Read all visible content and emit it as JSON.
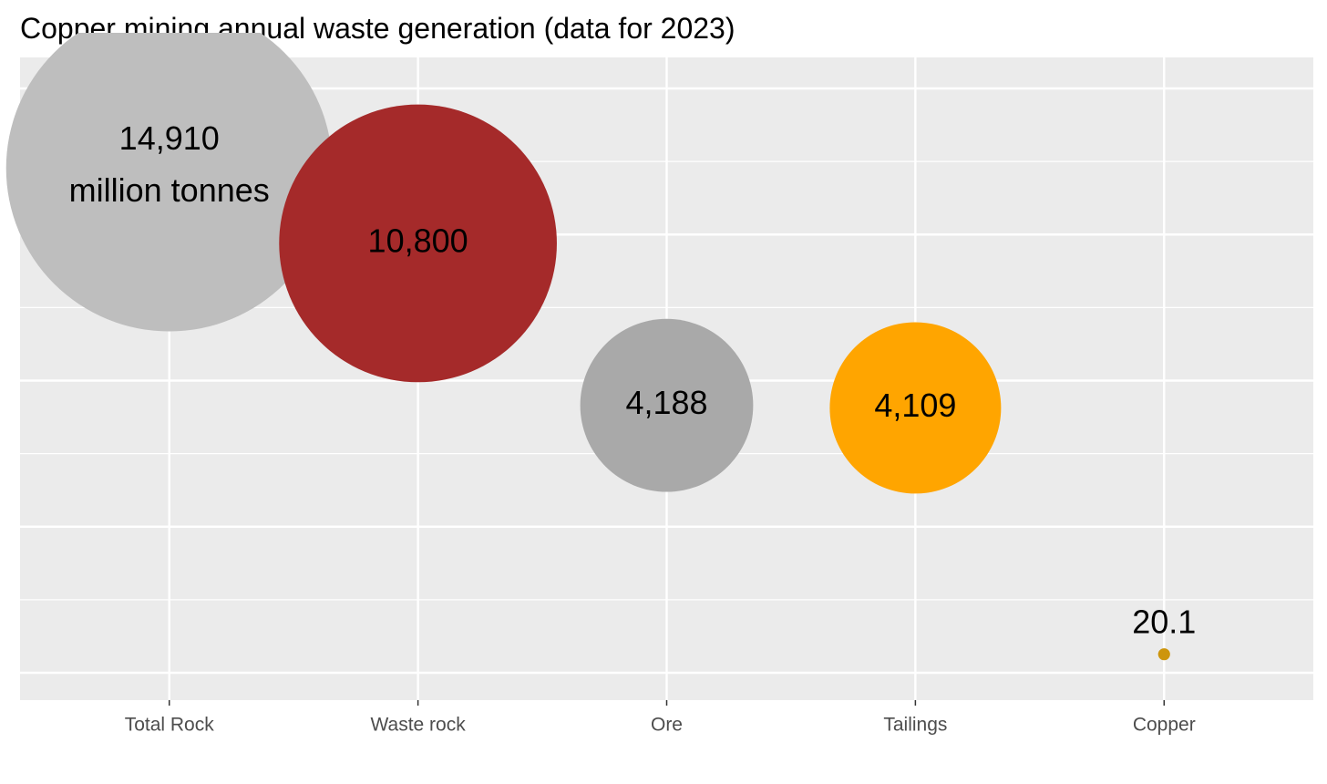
{
  "chart_data": {
    "type": "bubble",
    "title": "Copper mining annual waste generation (data for 2023)",
    "categories": [
      "Total Rock",
      "Waste rock",
      "Ore",
      "Tailings",
      "Copper"
    ],
    "values": [
      14910,
      10800,
      4188,
      4109,
      20.1
    ],
    "value_labels": [
      "14,910",
      "10,800",
      "4,188",
      "4,109",
      "20.1"
    ],
    "unit_label": "million tonnes",
    "colors": [
      "#bebebe",
      "#a52a2a",
      "#a9a9a9",
      "#ffa500",
      "#cd950c"
    ],
    "y_scale": "sqrt",
    "ylim": [
      0,
      20000
    ],
    "yticks": [
      0,
      1250,
      5000,
      11250,
      20000
    ],
    "yminor_ticks": [
      312.5,
      2812.5,
      7812.5,
      15312.5
    ],
    "grid": true
  }
}
